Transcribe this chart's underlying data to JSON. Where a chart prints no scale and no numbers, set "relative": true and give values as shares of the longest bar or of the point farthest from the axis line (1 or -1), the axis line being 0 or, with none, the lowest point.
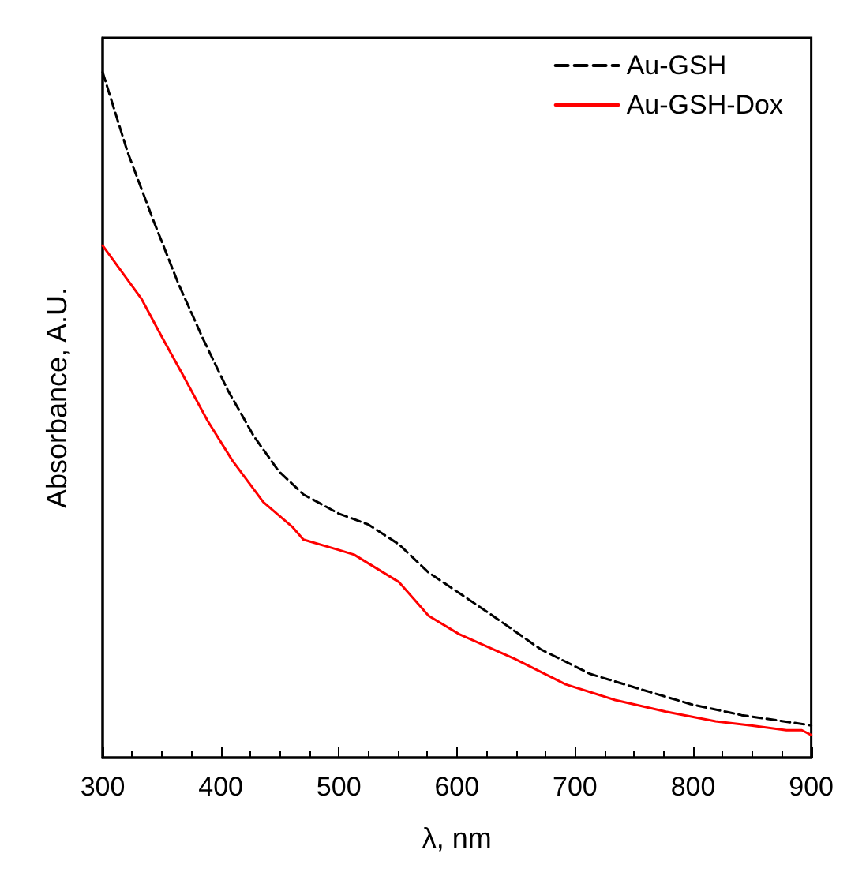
{
  "chart_data": {
    "type": "line",
    "relative": true,
    "xlabel": "λ, nm",
    "ylabel": "Absorbance, A.U.",
    "xlim": [
      300,
      900
    ],
    "xticks": [
      300,
      400,
      500,
      600,
      700,
      800,
      900
    ],
    "legend": "top right",
    "grid": false,
    "marker": "none",
    "series": [
      {
        "name": "Au-GSH",
        "color": "#000000",
        "line_style": "dashed",
        "x": [
          300,
          321,
          342,
          364,
          385,
          406,
          428,
          449,
          470,
          500,
          525,
          551,
          576,
          602,
          627,
          671,
          713,
          755,
          798,
          841,
          900
        ],
        "values": [
          1.0,
          0.884,
          0.788,
          0.692,
          0.611,
          0.536,
          0.469,
          0.418,
          0.384,
          0.356,
          0.34,
          0.311,
          0.27,
          0.24,
          0.211,
          0.158,
          0.122,
          0.1,
          0.078,
          0.062,
          0.047
        ]
      },
      {
        "name": "Au-GSH-Dox",
        "color": "#ff0000",
        "line_style": "solid",
        "x": [
          300,
          333,
          351,
          368,
          389,
          410,
          436,
          461,
          470,
          500,
          513,
          551,
          576,
          602,
          649,
          692,
          734,
          777,
          819,
          849,
          879,
          892,
          900
        ],
        "values": [
          0.747,
          0.669,
          0.611,
          0.558,
          0.491,
          0.433,
          0.373,
          0.336,
          0.318,
          0.303,
          0.296,
          0.256,
          0.207,
          0.18,
          0.144,
          0.107,
          0.084,
          0.067,
          0.053,
          0.047,
          0.04,
          0.04,
          0.033
        ]
      }
    ]
  }
}
